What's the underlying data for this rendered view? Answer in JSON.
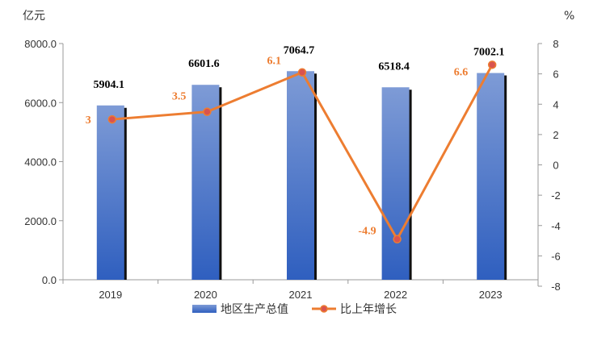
{
  "chart_data": {
    "type": "bar+line",
    "categories": [
      "2019",
      "2020",
      "2021",
      "2022",
      "2023"
    ],
    "series": [
      {
        "name": "地区生产总值",
        "type": "bar",
        "axis": "left",
        "values": [
          5904.1,
          6601.6,
          7064.7,
          6518.4,
          7002.1
        ],
        "labels": [
          "5904.1",
          "6601.6",
          "7064.7",
          "6518.4",
          "7002.1"
        ],
        "color": "#4472C4"
      },
      {
        "name": "比上年增长",
        "type": "line",
        "axis": "right",
        "values": [
          3,
          3.5,
          6.1,
          -4.9,
          6.6
        ],
        "labels": [
          "3",
          "3.5",
          "6.1",
          "-4.9",
          "6.6"
        ],
        "color": "#ED7D31"
      }
    ],
    "ylabel_left": "亿元",
    "ylabel_right": "%",
    "ylim_left": [
      0,
      8000
    ],
    "yticks_left": [
      "0.0",
      "2000.0",
      "4000.0",
      "6000.0",
      "8000.0"
    ],
    "ylim_right": [
      -8,
      8
    ],
    "yticks_right": [
      "-8",
      "-6",
      "-4",
      "-2",
      "0",
      "2",
      "4",
      "6",
      "8"
    ],
    "grid": false,
    "legend_position": "bottom"
  }
}
